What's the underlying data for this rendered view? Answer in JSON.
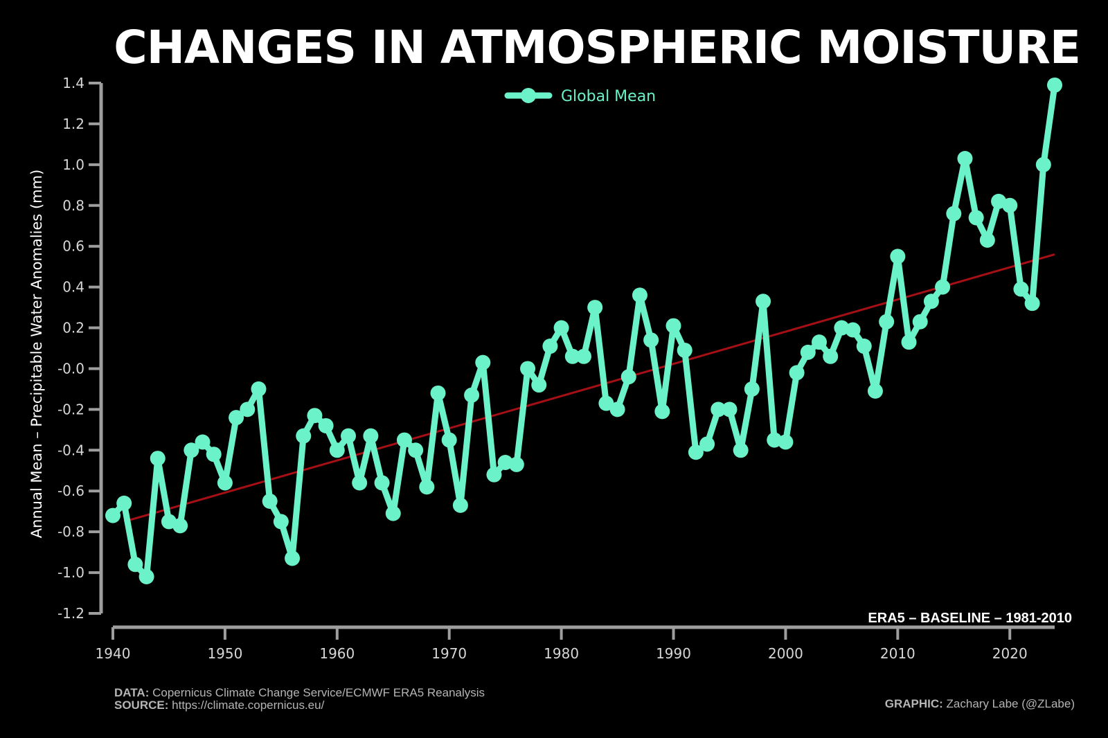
{
  "page": {
    "title": "CHANGES IN ATMOSPHERIC MOISTURE",
    "baseline_note": "ERA5 – BASELINE – 1981-2010",
    "credits": {
      "data_label": "DATA:",
      "data_text": "Copernicus Climate Change Service/ECMWF ERA5 Reanalysis",
      "source_label": "SOURCE:",
      "source_text": "https://climate.copernicus.eu/",
      "graphic_label": "GRAPHIC:",
      "graphic_text": "Zachary Labe (@ZLabe)"
    }
  },
  "colors": {
    "background": "#000000",
    "series": "#6cf2c8",
    "trend": "#a50f15",
    "axis": "#9e9e9e",
    "tick_label": "#d6d6d6"
  },
  "chart_data": {
    "type": "line",
    "title": "CHANGES IN ATMOSPHERIC MOISTURE",
    "xlabel": "",
    "ylabel": "Annual Mean – Precipitable Water Anomalies (mm)",
    "xlim": [
      1940,
      2024
    ],
    "ylim": [
      -1.2,
      1.4
    ],
    "xticks": [
      1940,
      1950,
      1960,
      1970,
      1980,
      1990,
      2000,
      2010,
      2020
    ],
    "xtick_labels": [
      "1940",
      "1950",
      "1960",
      "1970",
      "1980",
      "1990",
      "2000",
      "2010",
      "2020"
    ],
    "yticks": [
      -1.2,
      -1.0,
      -0.8,
      -0.6,
      -0.4,
      -0.2,
      0.0,
      0.2,
      0.4,
      0.6,
      0.8,
      1.0,
      1.2,
      1.4
    ],
    "ytick_labels": [
      "-1.2",
      "-1.0",
      "-0.8",
      "-0.6",
      "-0.4",
      "-0.2",
      "-0.0",
      "0.2",
      "0.4",
      "0.6",
      "0.8",
      "1.0",
      "1.2",
      "1.4"
    ],
    "grid": false,
    "legend": {
      "position": "top-center"
    },
    "series": [
      {
        "name": "Global Mean",
        "color": "#6cf2c8",
        "x": [
          1940,
          1941,
          1942,
          1943,
          1944,
          1945,
          1946,
          1947,
          1948,
          1949,
          1950,
          1951,
          1952,
          1953,
          1954,
          1955,
          1956,
          1957,
          1958,
          1959,
          1960,
          1961,
          1962,
          1963,
          1964,
          1965,
          1966,
          1967,
          1968,
          1969,
          1970,
          1971,
          1972,
          1973,
          1974,
          1975,
          1976,
          1977,
          1978,
          1979,
          1980,
          1981,
          1982,
          1983,
          1984,
          1985,
          1986,
          1987,
          1988,
          1989,
          1990,
          1991,
          1992,
          1993,
          1994,
          1995,
          1996,
          1997,
          1998,
          1999,
          2000,
          2001,
          2002,
          2003,
          2004,
          2005,
          2006,
          2007,
          2008,
          2009,
          2010,
          2011,
          2012,
          2013,
          2014,
          2015,
          2016,
          2017,
          2018,
          2019,
          2020,
          2021,
          2022,
          2023,
          2024
        ],
        "values": [
          -0.72,
          -0.66,
          -0.96,
          -1.02,
          -0.44,
          -0.75,
          -0.77,
          -0.4,
          -0.36,
          -0.42,
          -0.56,
          -0.24,
          -0.2,
          -0.1,
          -0.65,
          -0.75,
          -0.93,
          -0.33,
          -0.23,
          -0.28,
          -0.4,
          -0.33,
          -0.56,
          -0.33,
          -0.56,
          -0.71,
          -0.35,
          -0.4,
          -0.58,
          -0.12,
          -0.35,
          -0.67,
          -0.13,
          0.03,
          -0.52,
          -0.46,
          -0.47,
          0.0,
          -0.08,
          0.11,
          0.2,
          0.06,
          0.06,
          0.3,
          -0.17,
          -0.2,
          -0.04,
          0.36,
          0.14,
          -0.21,
          0.21,
          0.09,
          -0.41,
          -0.37,
          -0.2,
          -0.2,
          -0.4,
          -0.1,
          0.33,
          -0.35,
          -0.36,
          -0.02,
          0.08,
          0.13,
          0.06,
          0.2,
          0.19,
          0.11,
          -0.11,
          0.23,
          0.55,
          0.13,
          0.23,
          0.33,
          0.4,
          0.76,
          1.03,
          0.74,
          0.63,
          0.82,
          0.8,
          0.39,
          0.32,
          1.0,
          1.39
        ]
      },
      {
        "name": "",
        "kind": "linear-trend",
        "color": "#a50f15",
        "x": [
          1941,
          2024
        ],
        "values": [
          -0.75,
          0.56
        ]
      }
    ]
  }
}
